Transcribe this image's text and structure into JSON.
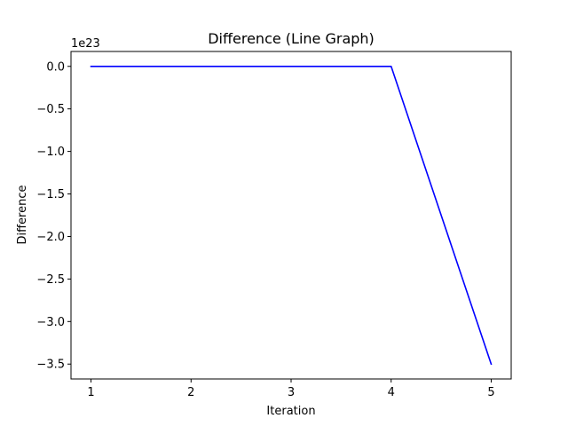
{
  "chart_data": {
    "type": "line",
    "title": "Difference (Line Graph)",
    "xlabel": "Iteration",
    "ylabel": "Difference",
    "offset_label": "1e23",
    "x": [
      1,
      2,
      3,
      4,
      5
    ],
    "series": [
      {
        "values": [
          0,
          0,
          0,
          0,
          -3.5e+23
        ],
        "color": "#0000ff"
      }
    ],
    "xticks": [
      1,
      2,
      3,
      4,
      5
    ],
    "xtick_labels": [
      "1",
      "2",
      "3",
      "4",
      "5"
    ],
    "yticks": [
      0.0,
      -0.5,
      -1.0,
      -1.5,
      -2.0,
      -2.5,
      -3.0,
      -3.5
    ],
    "ytick_labels": [
      "0.0",
      "−0.5",
      "−1.0",
      "−1.5",
      "−2.0",
      "−2.5",
      "−3.0",
      "−3.5"
    ],
    "ytick_scale": 1e+23,
    "xlim": [
      0.8,
      5.2
    ],
    "ylim": [
      -3.675e+23,
      1.75e+22
    ],
    "grid": false,
    "legend": "none"
  }
}
